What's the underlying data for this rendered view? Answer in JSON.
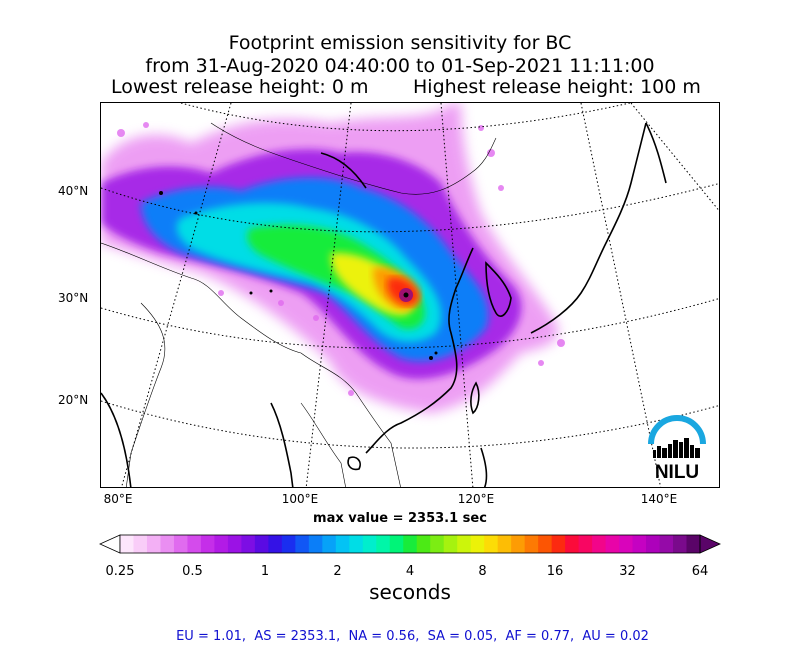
{
  "title": {
    "line1": "Footprint emission sensitivity for BC",
    "line2": "from 31-Aug-2020 04:40:00 to 01-Sep-2021 11:11:00",
    "release_low": "Lowest release height: 0 m",
    "release_high": "Highest release height: 100 m"
  },
  "map": {
    "lat_labels": [
      "40°N",
      "30°N",
      "20°N"
    ],
    "lon_labels": [
      "80°E",
      "100°E",
      "120°E",
      "140°E"
    ],
    "max_value_text": "max value = 2353.1 sec",
    "logo_text": "NILU",
    "colors": {
      "coast": "#000000",
      "border": "#000000",
      "grid": "#000000"
    }
  },
  "colorbar": {
    "label": "seconds",
    "tick_labels": [
      "0.25",
      "0.5",
      "1",
      "2",
      "4",
      "8",
      "16",
      "32",
      "64"
    ],
    "scale": "log2",
    "colors": [
      "#fde6fc",
      "#f9cdf8",
      "#f3b0f5",
      "#ea8ef2",
      "#e06bef",
      "#d44bec",
      "#c52ee9",
      "#b21be6",
      "#9b12e5",
      "#7d0ee4",
      "#5a0be3",
      "#3412e6",
      "#1a2ef0",
      "#1157f5",
      "#0b7ef8",
      "#07a2f8",
      "#03c3f4",
      "#00dde6",
      "#00eecd",
      "#00f6a8",
      "#00f478",
      "#18ec3b",
      "#4cea15",
      "#7ced13",
      "#a6f20f",
      "#ccf50b",
      "#ecf208",
      "#fcdc06",
      "#fdbd05",
      "#fd9c04",
      "#fd7a03",
      "#fc5503",
      "#fc2a10",
      "#fb0b3a",
      "#f80662",
      "#f2058a",
      "#e804a8",
      "#d904bb",
      "#c502c2",
      "#ad01bb",
      "#950aa8",
      "#7a0a8c",
      "#5a0468"
    ]
  },
  "region_stats_text": "EU = 1.01,  AS = 2353.1,  NA = 0.56,  SA = 0.05,  AF = 0.77,  AU = 0.02"
}
